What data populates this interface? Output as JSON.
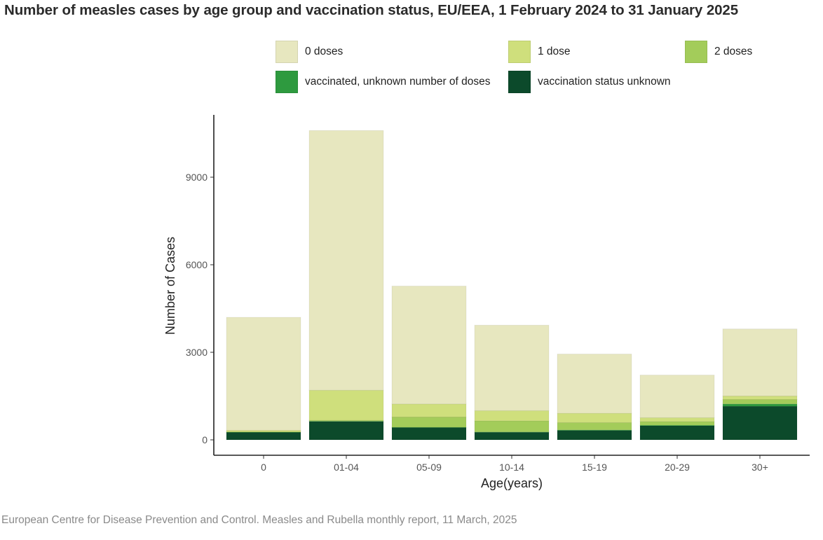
{
  "title": "Number of measles cases by age group and vaccination status, EU/EEA, 1 February 2024 to 31 January 2025",
  "source": "European Centre for Disease Prevention and Control. Measles and Rubella monthly report, 11 March, 2025",
  "legend": [
    {
      "label": "0 doses",
      "color": "#e7e7bf"
    },
    {
      "label": "1 dose",
      "color": "#cfdf7c"
    },
    {
      "label": "2 doses",
      "color": "#a3cc5a"
    },
    {
      "label": "vaccinated, unknown number of doses",
      "color": "#2e9a3f"
    },
    {
      "label": "vaccination status unknown",
      "color": "#0c4a2b"
    }
  ],
  "chart_data": {
    "type": "bar",
    "stacked": true,
    "xlabel": "Age(years)",
    "ylabel": "Number of Cases",
    "ylim": [
      0,
      11000
    ],
    "yticks": [
      0,
      3000,
      6000,
      9000
    ],
    "categories": [
      "0",
      "01-04",
      "05-09",
      "10-14",
      "15-19",
      "20-29",
      "30+"
    ],
    "series": [
      {
        "name": "vaccination status unknown",
        "values": [
          260,
          630,
          420,
          260,
          320,
          480,
          1150
        ]
      },
      {
        "name": "vaccinated, unknown number of doses",
        "values": [
          5,
          10,
          10,
          10,
          20,
          20,
          80
        ]
      },
      {
        "name": "2 doses",
        "values": [
          10,
          30,
          350,
          380,
          250,
          130,
          150
        ]
      },
      {
        "name": "1 dose",
        "values": [
          50,
          1030,
          450,
          350,
          320,
          130,
          120
        ]
      },
      {
        "name": "0 doses",
        "values": [
          3875,
          8900,
          4040,
          2930,
          2030,
          1460,
          2300
        ]
      }
    ],
    "legend_position": "top",
    "grid": false
  }
}
